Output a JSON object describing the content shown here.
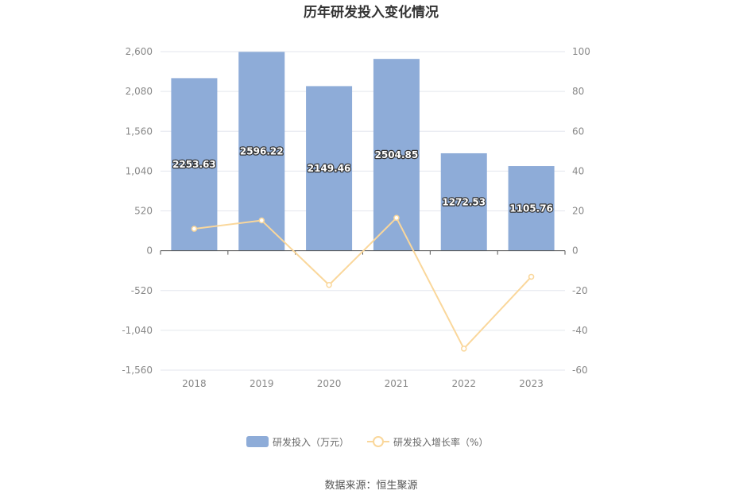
{
  "colors": {
    "bar": "#8eacd8",
    "line": "#fad79b",
    "grid": "#e3e6ee",
    "axis": "#555555"
  },
  "chart_data": {
    "type": "bar",
    "title": "历年研发投入变化情况",
    "categories": [
      "2018",
      "2019",
      "2020",
      "2021",
      "2022",
      "2023"
    ],
    "series": [
      {
        "name": "研发投入（万元）",
        "type": "bar",
        "axis": "left",
        "values": [
          2253.63,
          2596.22,
          2149.46,
          2504.85,
          1272.53,
          1105.76
        ],
        "labels": [
          "2253.63",
          "2596.22",
          "2149.46",
          "2504.85",
          "1272.53",
          "1105.76"
        ]
      },
      {
        "name": "研发投入增长率（%）",
        "type": "line",
        "axis": "right",
        "values": [
          11.0,
          15.2,
          -17.2,
          16.5,
          -49.2,
          -13.1
        ]
      }
    ],
    "y_left": {
      "ylim": [
        -1560,
        2600
      ],
      "ticks": [
        "2,600",
        "2,080",
        "1,560",
        "1,040",
        "520",
        "0",
        "-520",
        "-1,040",
        "-1,560"
      ],
      "tick_values": [
        2600,
        2080,
        1560,
        1040,
        520,
        0,
        -520,
        -1040,
        -1560
      ]
    },
    "y_right": {
      "ylim": [
        -60,
        100
      ],
      "ticks": [
        "100",
        "80",
        "60",
        "40",
        "20",
        "0",
        "-20",
        "-40",
        "-60"
      ],
      "tick_values": [
        100,
        80,
        60,
        40,
        20,
        0,
        -20,
        -40,
        -60
      ]
    },
    "grid": true,
    "legend": "bottom"
  },
  "source": "数据来源：恒生聚源"
}
